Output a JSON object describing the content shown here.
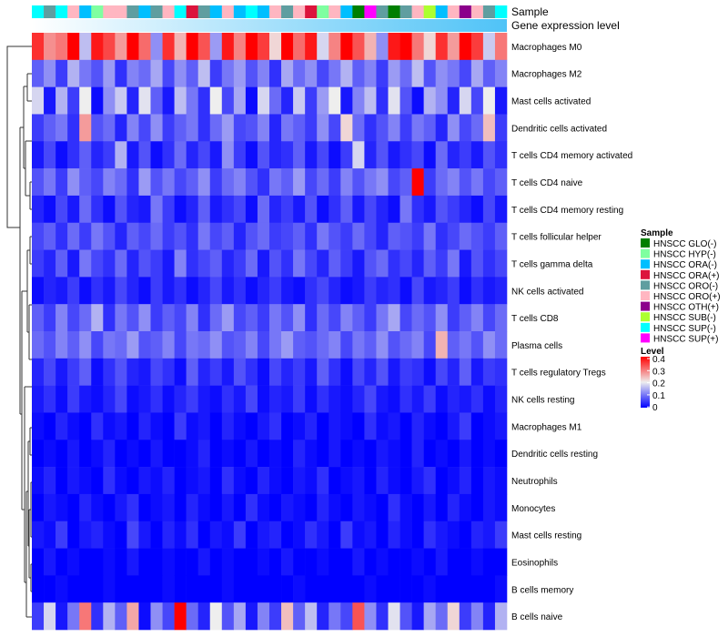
{
  "chart_data": {
    "type": "heatmap",
    "title": "",
    "annotations": {
      "sample_label": "Sample",
      "gene_label": "Gene expression level"
    },
    "sample_legend": {
      "title": "Sample",
      "entries": [
        {
          "name": "HNSCC GLO(-)",
          "color": "#007F00"
        },
        {
          "name": "HNSCC HYP(-)",
          "color": "#7FFFA0"
        },
        {
          "name": "HNSCC ORA(-)",
          "color": "#00BFFF"
        },
        {
          "name": "HNSCC ORA(+)",
          "color": "#DC143C"
        },
        {
          "name": "HNSCC ORO(-)",
          "color": "#5F9EA0"
        },
        {
          "name": "HNSCC ORO(+)",
          "color": "#FFB6C1"
        },
        {
          "name": "HNSCC OTH(+)",
          "color": "#8B008B"
        },
        {
          "name": "HNSCC SUB(-)",
          "color": "#ADFF2F"
        },
        {
          "name": "HNSCC SUP(-)",
          "color": "#00FFFF"
        },
        {
          "name": "HNSCC SUP(+)",
          "color": "#FF00FF"
        }
      ]
    },
    "level_legend": {
      "title": "Level",
      "ticks": [
        "0.4",
        "0.3",
        "0.2",
        "0.1",
        "0"
      ],
      "range": [
        0,
        0.4
      ],
      "colors": {
        "low": "#0000FF",
        "mid": "#EEEEEE",
        "high": "#FF0000"
      }
    },
    "gene_gradient": {
      "low": "#FFFFFF",
      "high": "#4FC3F7"
    },
    "samples": [
      8,
      4,
      8,
      5,
      2,
      1,
      5,
      5,
      4,
      2,
      4,
      5,
      8,
      3,
      4,
      2,
      5,
      2,
      8,
      2,
      5,
      4,
      5,
      3,
      1,
      5,
      2,
      0,
      9,
      4,
      0,
      4,
      5,
      7,
      2,
      5,
      6,
      5,
      4,
      8
    ],
    "rows": [
      {
        "name": "Macrophages M0",
        "values": [
          0.36,
          0.28,
          0.3,
          0.4,
          0.16,
          0.38,
          0.34,
          0.27,
          0.4,
          0.31,
          0.12,
          0.36,
          0.25,
          0.4,
          0.33,
          0.13,
          0.38,
          0.29,
          0.4,
          0.35,
          0.22,
          0.4,
          0.31,
          0.38,
          0.18,
          0.29,
          0.4,
          0.33,
          0.25,
          0.12,
          0.38,
          0.4,
          0.3,
          0.22,
          0.36,
          0.27,
          0.4,
          0.35,
          0.17,
          0.3
        ]
      },
      {
        "name": "Macrophages M2",
        "values": [
          0.08,
          0.12,
          0.05,
          0.15,
          0.1,
          0.07,
          0.13,
          0.04,
          0.11,
          0.09,
          0.14,
          0.06,
          0.12,
          0.08,
          0.16,
          0.05,
          0.1,
          0.13,
          0.07,
          0.11,
          0.04,
          0.14,
          0.09,
          0.12,
          0.06,
          0.1,
          0.15,
          0.08,
          0.11,
          0.05,
          0.13,
          0.09,
          0.16,
          0.07,
          0.12,
          0.1,
          0.06,
          0.14,
          0.08,
          0.11
        ]
      },
      {
        "name": "Mast cells activated",
        "values": [
          0.18,
          0.02,
          0.15,
          0.05,
          0.2,
          0.01,
          0.12,
          0.17,
          0.03,
          0.19,
          0.08,
          0.02,
          0.16,
          0.1,
          0.04,
          0.2,
          0.06,
          0.14,
          0.01,
          0.18,
          0.09,
          0.03,
          0.17,
          0.05,
          0.13,
          0.2,
          0.02,
          0.11,
          0.16,
          0.04,
          0.19,
          0.07,
          0.01,
          0.15,
          0.12,
          0.03,
          0.18,
          0.06,
          0.2,
          0.02
        ]
      },
      {
        "name": "Dendritic cells activated",
        "values": [
          0.05,
          0.08,
          0.1,
          0.04,
          0.27,
          0.07,
          0.09,
          0.03,
          0.11,
          0.06,
          0.12,
          0.05,
          0.08,
          0.1,
          0.04,
          0.09,
          0.13,
          0.06,
          0.07,
          0.11,
          0.03,
          0.1,
          0.08,
          0.05,
          0.12,
          0.06,
          0.22,
          0.09,
          0.04,
          0.07,
          0.11,
          0.05,
          0.1,
          0.08,
          0.03,
          0.12,
          0.06,
          0.09,
          0.24,
          0.05
        ]
      },
      {
        "name": "T cells CD4 memory activated",
        "values": [
          0.02,
          0.06,
          0.01,
          0.04,
          0.08,
          0.03,
          0.05,
          0.15,
          0.02,
          0.07,
          0.01,
          0.04,
          0.09,
          0.03,
          0.06,
          0.02,
          0.12,
          0.05,
          0.01,
          0.07,
          0.03,
          0.04,
          0.08,
          0.02,
          0.06,
          0.01,
          0.05,
          0.18,
          0.03,
          0.07,
          0.02,
          0.04,
          0.06,
          0.01,
          0.09,
          0.03,
          0.05,
          0.02,
          0.07,
          0.04
        ]
      },
      {
        "name": "T cells CD4 naive",
        "values": [
          0.07,
          0.1,
          0.05,
          0.12,
          0.08,
          0.06,
          0.11,
          0.09,
          0.04,
          0.13,
          0.07,
          0.1,
          0.06,
          0.08,
          0.12,
          0.05,
          0.09,
          0.11,
          0.07,
          0.04,
          0.1,
          0.08,
          0.13,
          0.06,
          0.09,
          0.05,
          0.11,
          0.07,
          0.1,
          0.12,
          0.06,
          0.08,
          0.4,
          0.05,
          0.09,
          0.11,
          0.07,
          0.1,
          0.06,
          0.08
        ]
      },
      {
        "name": "T cells CD4 memory resting",
        "values": [
          0.03,
          0.01,
          0.06,
          0.02,
          0.09,
          0.04,
          0.01,
          0.07,
          0.03,
          0.02,
          0.1,
          0.05,
          0.01,
          0.03,
          0.08,
          0.02,
          0.04,
          0.06,
          0.01,
          0.09,
          0.03,
          0.05,
          0.02,
          0.07,
          0.01,
          0.04,
          0.08,
          0.02,
          0.06,
          0.03,
          0.01,
          0.1,
          0.04,
          0.02,
          0.07,
          0.05,
          0.03,
          0.01,
          0.06,
          0.02
        ]
      },
      {
        "name": "T cells follicular helper",
        "values": [
          0.06,
          0.08,
          0.04,
          0.09,
          0.05,
          0.1,
          0.07,
          0.03,
          0.08,
          0.06,
          0.09,
          0.05,
          0.07,
          0.04,
          0.1,
          0.06,
          0.08,
          0.03,
          0.07,
          0.09,
          0.05,
          0.06,
          0.08,
          0.04,
          0.1,
          0.07,
          0.05,
          0.09,
          0.06,
          0.03,
          0.08,
          0.07,
          0.05,
          0.1,
          0.04,
          0.06,
          0.09,
          0.07,
          0.05,
          0.08
        ]
      },
      {
        "name": "T cells gamma delta",
        "values": [
          0.05,
          0.03,
          0.08,
          0.02,
          0.1,
          0.06,
          0.04,
          0.09,
          0.03,
          0.07,
          0.05,
          0.02,
          0.11,
          0.04,
          0.06,
          0.08,
          0.03,
          0.05,
          0.09,
          0.02,
          0.07,
          0.04,
          0.1,
          0.06,
          0.03,
          0.08,
          0.05,
          0.02,
          0.07,
          0.09,
          0.04,
          0.06,
          0.03,
          0.08,
          0.05,
          0.1,
          0.02,
          0.07,
          0.04,
          0.06
        ]
      },
      {
        "name": "NK cells activated",
        "values": [
          0.01,
          0.03,
          0.02,
          0.05,
          0.01,
          0.04,
          0.02,
          0.06,
          0.03,
          0.01,
          0.05,
          0.02,
          0.04,
          0.01,
          0.03,
          0.06,
          0.02,
          0.04,
          0.01,
          0.03,
          0.05,
          0.02,
          0.01,
          0.04,
          0.06,
          0.03,
          0.01,
          0.02,
          0.05,
          0.03,
          0.04,
          0.01,
          0.06,
          0.02,
          0.03,
          0.05,
          0.01,
          0.04,
          0.02,
          0.03
        ]
      },
      {
        "name": "T cells CD8",
        "values": [
          0.08,
          0.05,
          0.11,
          0.06,
          0.09,
          0.15,
          0.04,
          0.1,
          0.07,
          0.12,
          0.05,
          0.08,
          0.06,
          0.11,
          0.04,
          0.09,
          0.13,
          0.06,
          0.08,
          0.05,
          0.1,
          0.07,
          0.12,
          0.04,
          0.09,
          0.06,
          0.11,
          0.08,
          0.05,
          0.1,
          0.14,
          0.06,
          0.09,
          0.07,
          0.12,
          0.05,
          0.08,
          0.11,
          0.06,
          0.09
        ]
      },
      {
        "name": "Plasma cells",
        "values": [
          0.09,
          0.07,
          0.11,
          0.08,
          0.12,
          0.06,
          0.1,
          0.09,
          0.13,
          0.07,
          0.08,
          0.11,
          0.06,
          0.1,
          0.09,
          0.12,
          0.07,
          0.08,
          0.11,
          0.06,
          0.1,
          0.13,
          0.08,
          0.07,
          0.09,
          0.11,
          0.06,
          0.1,
          0.08,
          0.12,
          0.07,
          0.09,
          0.11,
          0.06,
          0.25,
          0.08,
          0.1,
          0.07,
          0.12,
          0.09
        ]
      },
      {
        "name": "T cells regulatory  Tregs",
        "values": [
          0.03,
          0.06,
          0.02,
          0.05,
          0.08,
          0.01,
          0.04,
          0.07,
          0.03,
          0.02,
          0.06,
          0.04,
          0.01,
          0.08,
          0.03,
          0.05,
          0.02,
          0.07,
          0.04,
          0.01,
          0.06,
          0.03,
          0.05,
          0.02,
          0.08,
          0.04,
          0.01,
          0.06,
          0.03,
          0.07,
          0.02,
          0.05,
          0.04,
          0.01,
          0.06,
          0.03,
          0.08,
          0.02,
          0.05,
          0.04
        ]
      },
      {
        "name": "NK cells resting",
        "values": [
          0.02,
          0.04,
          0.01,
          0.05,
          0.02,
          0.01,
          0.03,
          0.06,
          0.01,
          0.02,
          0.04,
          0.01,
          0.03,
          0.05,
          0.02,
          0.01,
          0.04,
          0.02,
          0.06,
          0.01,
          0.03,
          0.02,
          0.05,
          0.01,
          0.04,
          0.02,
          0.01,
          0.03,
          0.06,
          0.02,
          0.01,
          0.04,
          0.02,
          0.05,
          0.01,
          0.03,
          0.02,
          0.04,
          0.01,
          0.03
        ]
      },
      {
        "name": "Macrophages M1",
        "values": [
          0.01,
          0,
          0.03,
          0.01,
          0,
          0.04,
          0.01,
          0.02,
          0,
          0.03,
          0.01,
          0,
          0.05,
          0.01,
          0.02,
          0,
          0.03,
          0.01,
          0,
          0.02,
          0.04,
          0,
          0.01,
          0.03,
          0,
          0.02,
          0.01,
          0,
          0.04,
          0.01,
          0.02,
          0,
          0.03,
          0.01,
          0,
          0.02,
          0.05,
          0,
          0.01,
          0.02
        ]
      },
      {
        "name": "Dendritic cells resting",
        "values": [
          0,
          0.01,
          0,
          0.02,
          0,
          0.01,
          0.03,
          0,
          0.01,
          0,
          0.02,
          0,
          0,
          0.01,
          0.03,
          0,
          0.01,
          0,
          0.02,
          0,
          0.01,
          0,
          0.03,
          0.01,
          0,
          0.02,
          0,
          0.01,
          0,
          0.02,
          0.01,
          0,
          0.03,
          0,
          0.01,
          0,
          0.02,
          0,
          0.01,
          0
        ]
      },
      {
        "name": "Neutrophils",
        "values": [
          0.01,
          0.03,
          0,
          0.02,
          0.01,
          0,
          0.04,
          0.01,
          0,
          0.02,
          0.01,
          0.03,
          0,
          0.01,
          0.02,
          0,
          0.04,
          0.01,
          0,
          0.03,
          0.01,
          0,
          0.02,
          0.01,
          0.04,
          0,
          0.01,
          0.02,
          0,
          0.03,
          0.01,
          0,
          0.02,
          0.04,
          0,
          0.01,
          0.03,
          0,
          0.02,
          0.01
        ]
      },
      {
        "name": "Monocytes",
        "values": [
          0,
          0.02,
          0.01,
          0,
          0.03,
          0.01,
          0,
          0.02,
          0.04,
          0,
          0.01,
          0.02,
          0,
          0.03,
          0.01,
          0,
          0.02,
          0,
          0.04,
          0.01,
          0,
          0.02,
          0.01,
          0,
          0.03,
          0.01,
          0,
          0.02,
          0.01,
          0,
          0.04,
          0.01,
          0,
          0.02,
          0,
          0.03,
          0.01,
          0,
          0.02,
          0.01
        ]
      },
      {
        "name": "Mast cells resting",
        "values": [
          0.02,
          0.01,
          0.05,
          0,
          0.02,
          0.03,
          0.01,
          0,
          0.06,
          0.02,
          0,
          0.03,
          0.01,
          0.04,
          0,
          0.02,
          0.01,
          0.05,
          0,
          0.02,
          0.03,
          0,
          0.01,
          0.04,
          0.02,
          0,
          0.05,
          0.01,
          0.02,
          0,
          0.03,
          0.01,
          0,
          0.04,
          0.02,
          0.01,
          0,
          0.03,
          0.02,
          0.05
        ]
      },
      {
        "name": "Eosinophils",
        "values": [
          0,
          0.02,
          0,
          0.01,
          0,
          0,
          0.01,
          0,
          0.02,
          0,
          0,
          0.01,
          0,
          0,
          0.02,
          0,
          0.01,
          0,
          0,
          0.01,
          0,
          0.02,
          0,
          0,
          0.01,
          0,
          0,
          0.02,
          0,
          0.01,
          0,
          0,
          0.01,
          0,
          0.02,
          0,
          0,
          0.01,
          0,
          0
        ]
      },
      {
        "name": "B cells memory",
        "values": [
          0,
          0,
          0.01,
          0,
          0,
          0,
          0.01,
          0,
          0,
          0,
          0,
          0.01,
          0,
          0,
          0,
          0,
          0.01,
          0,
          0,
          0,
          0,
          0,
          0.01,
          0,
          0,
          0,
          0,
          0,
          0.01,
          0,
          0,
          0,
          0,
          0.01,
          0,
          0,
          0,
          0,
          0,
          0.01
        ]
      },
      {
        "name": "B cells naive",
        "values": [
          0.05,
          0.18,
          0.02,
          0.1,
          0.3,
          0.04,
          0.15,
          0.08,
          0.26,
          0.01,
          0.12,
          0.06,
          0.4,
          0.09,
          0.03,
          0.2,
          0.07,
          0.14,
          0.02,
          0.11,
          0.05,
          0.24,
          0.08,
          0.16,
          0.03,
          0.1,
          0.06,
          0.33,
          0.12,
          0.04,
          0.19,
          0.07,
          0.02,
          0.14,
          0.09,
          0.22,
          0.05,
          0.11,
          0.03,
          0.15
        ]
      }
    ]
  }
}
